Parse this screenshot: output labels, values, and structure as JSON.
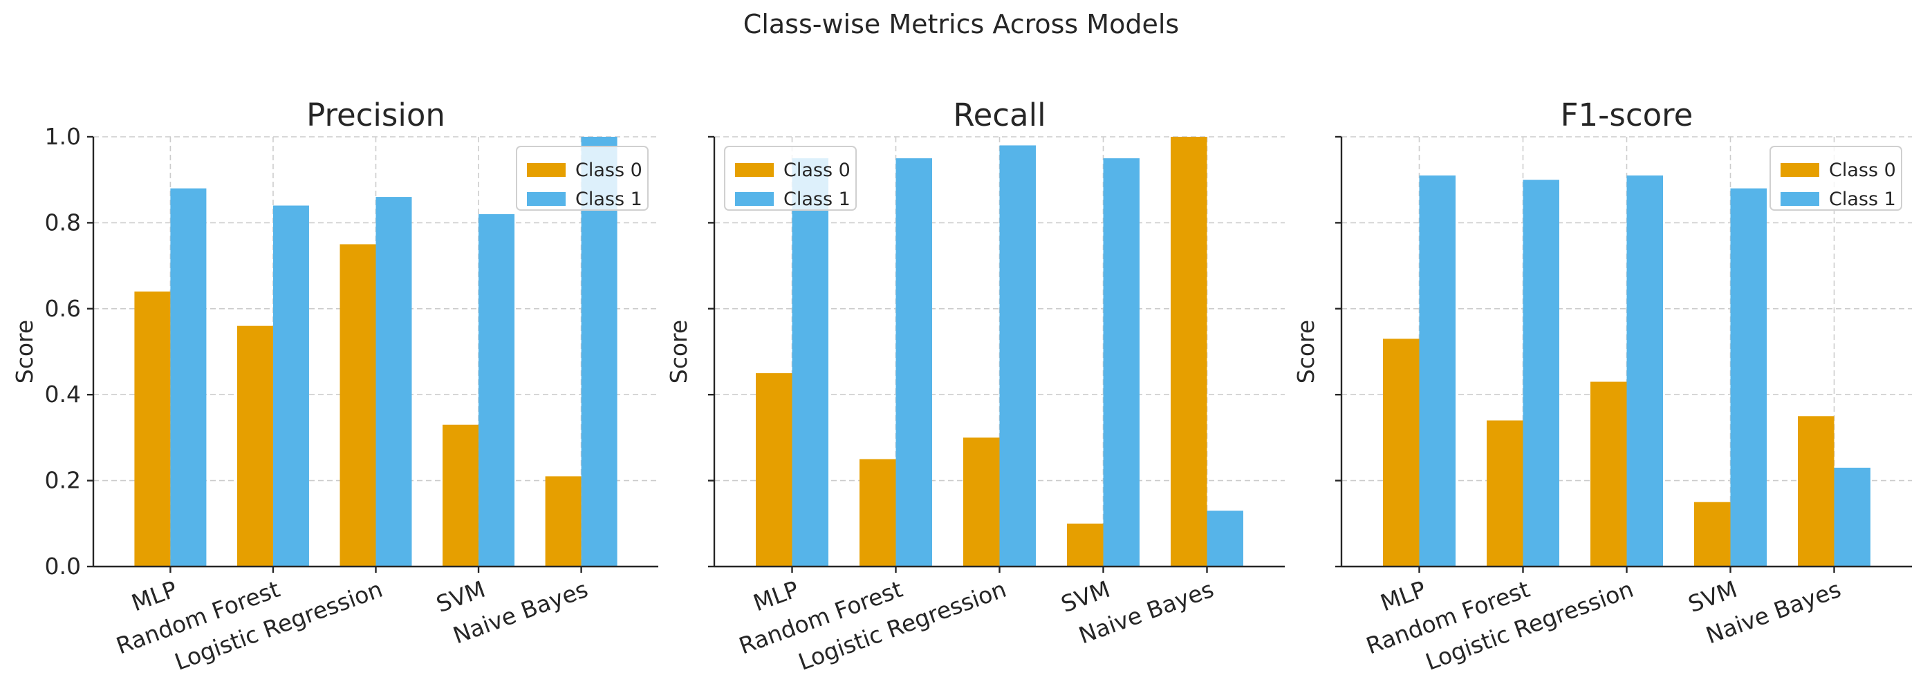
{
  "figure_title": "Class-wise Metrics Across Models",
  "colors": {
    "class0": "#E69F00",
    "class1": "#56B4E9"
  },
  "chart_data": [
    {
      "type": "bar",
      "title": "Precision",
      "xlabel": "",
      "ylabel": "Score",
      "ylim": [
        0,
        1.0
      ],
      "yticks": [
        "0.0",
        "0.2",
        "0.4",
        "0.6",
        "0.8",
        "1.0"
      ],
      "show_tick_labels": true,
      "legend_position": "upper right",
      "categories": [
        "MLP",
        "Random Forest",
        "Logistic Regression",
        "SVM",
        "Naive Bayes"
      ],
      "series": [
        {
          "name": "Class 0",
          "values": [
            0.64,
            0.56,
            0.75,
            0.33,
            0.21
          ]
        },
        {
          "name": "Class 1",
          "values": [
            0.88,
            0.84,
            0.86,
            0.82,
            1.0
          ]
        }
      ],
      "grid": true
    },
    {
      "type": "bar",
      "title": "Recall",
      "xlabel": "",
      "ylabel": "Score",
      "ylim": [
        0,
        1.0
      ],
      "yticks": [
        "0.0",
        "0.2",
        "0.4",
        "0.6",
        "0.8",
        "1.0"
      ],
      "show_tick_labels": false,
      "legend_position": "upper left",
      "categories": [
        "MLP",
        "Random Forest",
        "Logistic Regression",
        "SVM",
        "Naive Bayes"
      ],
      "series": [
        {
          "name": "Class 0",
          "values": [
            0.45,
            0.25,
            0.3,
            0.1,
            1.0
          ]
        },
        {
          "name": "Class 1",
          "values": [
            0.95,
            0.95,
            0.98,
            0.95,
            0.13
          ]
        }
      ],
      "grid": true
    },
    {
      "type": "bar",
      "title": "F1-score",
      "xlabel": "",
      "ylabel": "Score",
      "ylim": [
        0,
        1.0
      ],
      "yticks": [
        "0.0",
        "0.2",
        "0.4",
        "0.6",
        "0.8",
        "1.0"
      ],
      "show_tick_labels": false,
      "legend_position": "upper right",
      "categories": [
        "MLP",
        "Random Forest",
        "Logistic Regression",
        "SVM",
        "Naive Bayes"
      ],
      "series": [
        {
          "name": "Class 0",
          "values": [
            0.53,
            0.34,
            0.43,
            0.15,
            0.35
          ]
        },
        {
          "name": "Class 1",
          "values": [
            0.91,
            0.9,
            0.91,
            0.88,
            0.23
          ]
        }
      ],
      "grid": true
    }
  ]
}
